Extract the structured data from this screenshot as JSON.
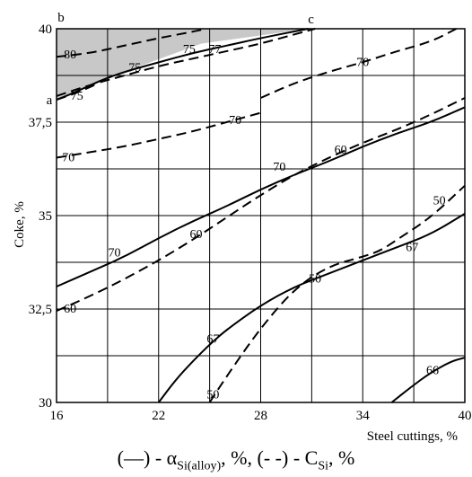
{
  "chart_data": {
    "type": "contour",
    "title": "",
    "xlabel": "Steel cuttings, %",
    "ylabel": "Coke, %",
    "xlim": [
      16,
      40
    ],
    "ylim": [
      30,
      40
    ],
    "xticks": [
      "16",
      "22",
      "28",
      "34",
      "40"
    ],
    "yticks": [
      "30",
      "32,5",
      "35",
      "37,5",
      "40"
    ],
    "grid": true,
    "legend_caption": {
      "solid_marker": "(—)",
      "solid_text": " - α",
      "solid_sub": "Si(alloy)",
      "middle": ", %, ",
      "dashed_marker": "(- -)",
      "dashed_text": " - C",
      "dashed_sub": "Si",
      "end": ", %"
    },
    "shaded_region": {
      "points": [
        [
          16,
          40
        ],
        [
          30.8,
          40
        ],
        [
          24.5,
          39.6
        ],
        [
          18.5,
          38.6
        ],
        [
          16,
          38.1
        ]
      ],
      "color": "#c8c8c8",
      "corner_labels": [
        {
          "text": "a",
          "x": 16,
          "y": 38.1
        },
        {
          "text": "b",
          "x": 16,
          "y": 40
        },
        {
          "text": "c",
          "x": 30.8,
          "y": 40
        }
      ]
    },
    "series": [
      {
        "name": "αSi(alloy)",
        "level": "75",
        "style": "solid",
        "points": [
          [
            16,
            38.1
          ],
          [
            17,
            38.28
          ],
          [
            18.5,
            38.6
          ],
          [
            20,
            38.85
          ],
          [
            22,
            39.1
          ],
          [
            24,
            39.35
          ],
          [
            26,
            39.55
          ],
          [
            28,
            39.75
          ],
          [
            30.8,
            40
          ]
        ],
        "label_at": [
          20.6,
          38.95
        ]
      },
      {
        "name": "αSi(alloy)",
        "level": "70",
        "style": "solid",
        "points": [
          [
            16,
            33.1
          ],
          [
            18,
            33.5
          ],
          [
            20,
            33.9
          ],
          [
            22,
            34.4
          ],
          [
            24,
            34.85
          ],
          [
            26,
            35.25
          ],
          [
            28,
            35.7
          ],
          [
            30,
            36.1
          ],
          [
            32,
            36.45
          ],
          [
            34,
            36.85
          ],
          [
            36,
            37.2
          ],
          [
            38,
            37.5
          ],
          [
            40,
            37.9
          ]
        ],
        "label_at": [
          19.4,
          34.0
        ]
      },
      {
        "name": "αSi(alloy)",
        "level": "67",
        "style": "solid",
        "points": [
          [
            22,
            30
          ],
          [
            23,
            30.6
          ],
          [
            24,
            31.1
          ],
          [
            25,
            31.55
          ],
          [
            26,
            31.95
          ],
          [
            28,
            32.6
          ],
          [
            30,
            33.1
          ],
          [
            32,
            33.45
          ],
          [
            34,
            33.8
          ],
          [
            36,
            34.15
          ],
          [
            38,
            34.5
          ],
          [
            40,
            35.05
          ]
        ],
        "label_at": [
          25.2,
          31.7
        ]
      },
      {
        "name": "αSi(alloy)",
        "level": "66",
        "style": "solid",
        "points": [
          [
            35.7,
            30
          ],
          [
            36.8,
            30.4
          ],
          [
            38,
            30.8
          ],
          [
            39.2,
            31.1
          ],
          [
            40,
            31.2
          ]
        ],
        "label_at": [
          38.1,
          30.85
        ]
      },
      {
        "name": "CSi",
        "level": "80",
        "style": "dashed",
        "points": [
          [
            16,
            39.25
          ],
          [
            18,
            39.35
          ],
          [
            20,
            39.55
          ],
          [
            22,
            39.75
          ],
          [
            24,
            39.92
          ],
          [
            24.8,
            40
          ]
        ],
        "label_at": [
          16.8,
          39.3
        ]
      },
      {
        "name": "CSi",
        "level": "77",
        "style": "dashed",
        "points": [
          [
            16,
            38.2
          ],
          [
            18,
            38.5
          ],
          [
            20,
            38.75
          ],
          [
            22,
            39.0
          ],
          [
            24,
            39.2
          ],
          [
            26,
            39.4
          ],
          [
            28,
            39.6
          ],
          [
            30,
            39.85
          ],
          [
            31.2,
            40
          ]
        ],
        "label_at": [
          25.3,
          39.45
        ]
      },
      {
        "name": "CSi",
        "level": "75",
        "style": "dashed",
        "points": [
          [
            16,
            38.1
          ],
          [
            17.3,
            38.3
          ],
          [
            18.5,
            38.55
          ]
        ],
        "label_at": [
          17.2,
          38.2
        ]
      },
      {
        "name": "CSi",
        "level": "70",
        "style": "dashed",
        "points": [
          [
            28,
            38.15
          ],
          [
            30,
            38.55
          ],
          [
            32,
            38.85
          ],
          [
            34,
            39.1
          ],
          [
            36,
            39.4
          ],
          [
            38,
            39.65
          ],
          [
            39.5,
            40
          ]
        ],
        "label_at": [
          34.0,
          39.1
        ]
      },
      {
        "name": "CSi",
        "level": "70",
        "style": "dashed",
        "points": [
          [
            16,
            36.55
          ],
          [
            18,
            36.7
          ],
          [
            20,
            36.85
          ],
          [
            22,
            37.05
          ],
          [
            24,
            37.25
          ],
          [
            26,
            37.5
          ],
          [
            28,
            37.75
          ]
        ],
        "label_at": [
          16.7,
          36.55
        ]
      },
      {
        "name": "CSi",
        "level": "60",
        "style": "dashed",
        "points": [
          [
            16,
            32.45
          ],
          [
            18,
            32.85
          ],
          [
            20,
            33.3
          ],
          [
            22,
            33.8
          ],
          [
            24,
            34.35
          ],
          [
            26,
            34.95
          ],
          [
            28,
            35.55
          ],
          [
            30,
            36.1
          ],
          [
            32,
            36.55
          ],
          [
            34,
            36.95
          ],
          [
            36,
            37.3
          ],
          [
            38,
            37.7
          ],
          [
            40,
            38.15
          ]
        ],
        "label_at": [
          16.8,
          32.5
        ]
      },
      {
        "name": "CSi",
        "level": "50",
        "style": "dashed",
        "points": [
          [
            25,
            30
          ],
          [
            26,
            30.7
          ],
          [
            28,
            32.0
          ],
          [
            30,
            33.05
          ],
          [
            32,
            33.65
          ],
          [
            34,
            33.9
          ],
          [
            35,
            34.05
          ],
          [
            36,
            34.35
          ],
          [
            38,
            34.95
          ],
          [
            40,
            35.8
          ]
        ],
        "label_at": [
          31.2,
          33.3
        ]
      }
    ],
    "extra_labels": [
      {
        "text": "70",
        "x": 29.1,
        "y": 36.3
      },
      {
        "text": "60",
        "x": 24.2,
        "y": 34.5
      },
      {
        "text": "60",
        "x": 32.7,
        "y": 36.75
      },
      {
        "text": "70",
        "x": 26.5,
        "y": 37.55
      },
      {
        "text": "75",
        "x": 23.8,
        "y": 39.45
      },
      {
        "text": "50",
        "x": 38.5,
        "y": 35.4
      },
      {
        "text": "67",
        "x": 36.9,
        "y": 34.15
      },
      {
        "text": "50",
        "x": 25.2,
        "y": 30.2
      }
    ]
  }
}
